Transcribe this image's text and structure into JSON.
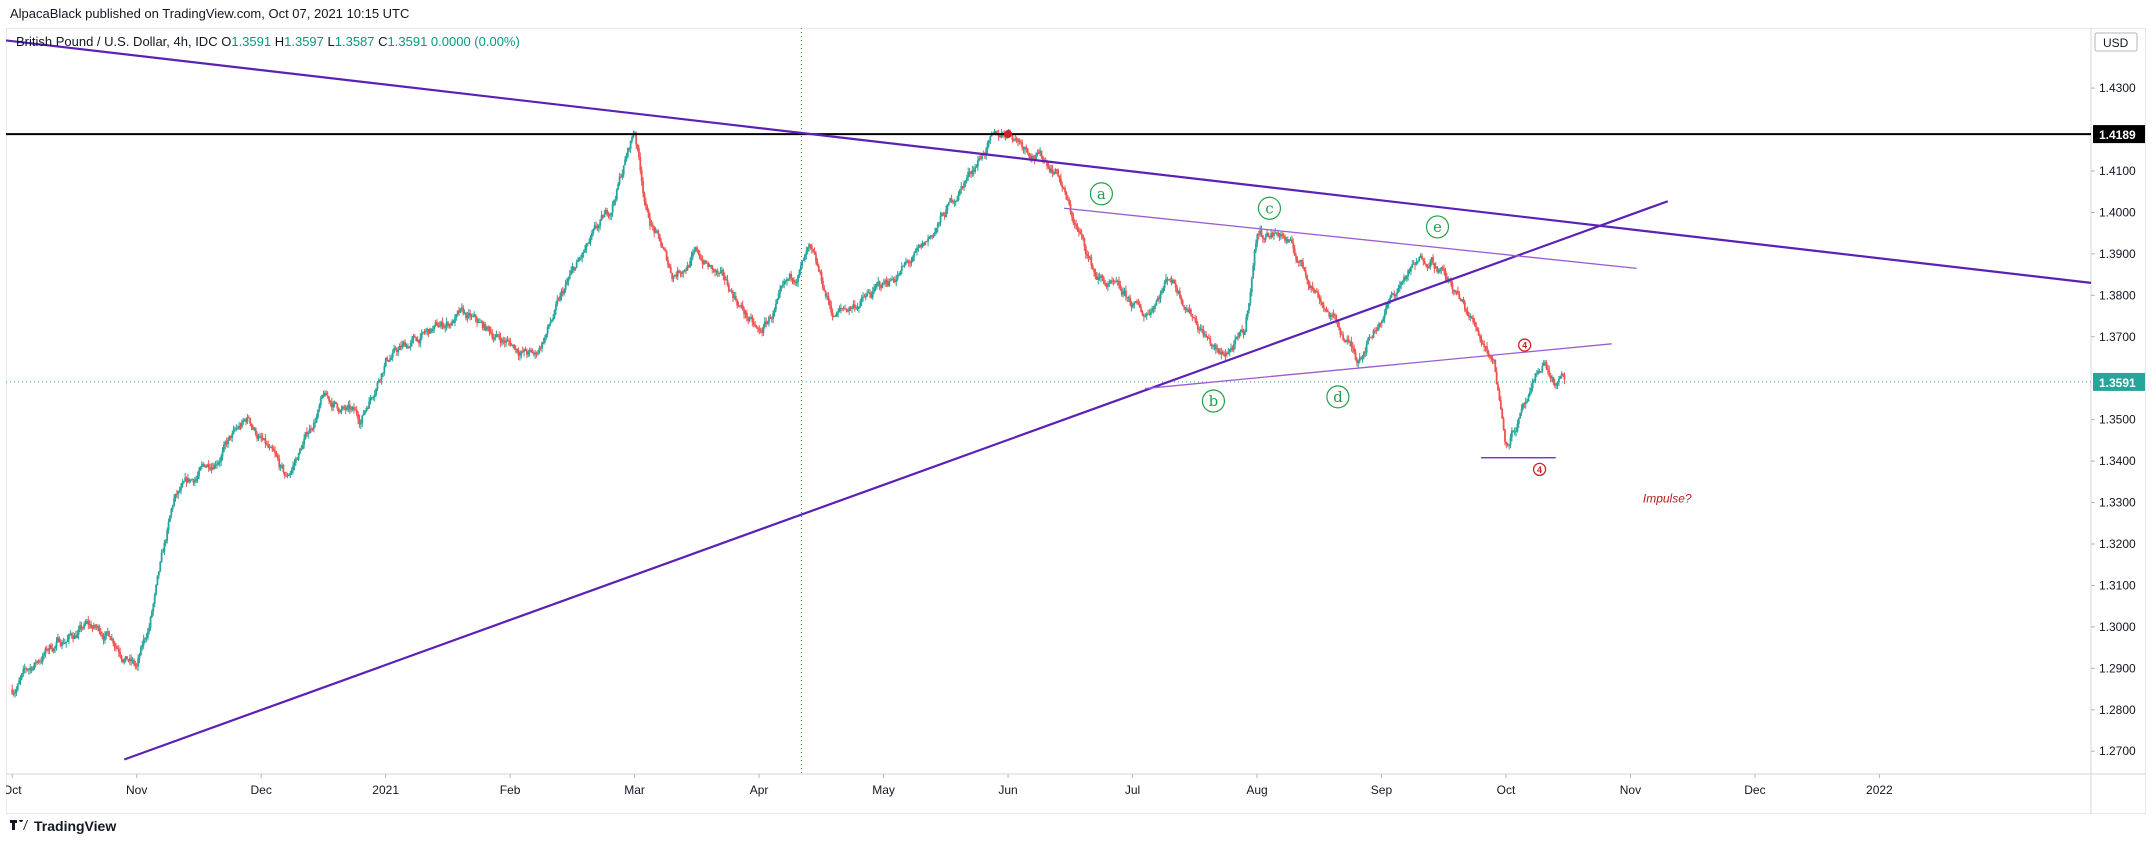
{
  "publisher": "AlpacaBlack published on TradingView.com, Oct 07, 2021 10:15 UTC",
  "legend": {
    "symbol": "British Pound / U.S. Dollar, 4h, IDC",
    "o_label": "O",
    "o": "1.3591",
    "h_label": "H",
    "h": "1.3597",
    "l_label": "L",
    "l": "1.3587",
    "c_label": "C",
    "c": "1.3591",
    "change": "0.0000 (0.00%)"
  },
  "footer": {
    "brand": "TradingView"
  },
  "colors": {
    "up": "#26a69a",
    "down": "#ef5350",
    "trendline": "#5b21b6",
    "triangle": "#9c5bd1",
    "wave": "#22a146",
    "marker": "#d11f2a",
    "level": "#000000"
  },
  "chart_data": {
    "type": "candlestick",
    "currency": "USD",
    "ylim": [
      1.2645,
      1.4445
    ],
    "y_ticks": [
      "1.4300",
      "1.4100",
      "1.4000",
      "1.3900",
      "1.3800",
      "1.3700",
      "1.3500",
      "1.3400",
      "1.3300",
      "1.3200",
      "1.3100",
      "1.3000",
      "1.2900",
      "1.2800",
      "1.2700"
    ],
    "x_ticks": [
      "Oct",
      "Nov",
      "Dec",
      "2021",
      "Feb",
      "Mar",
      "Apr",
      "May",
      "Jun",
      "Jul",
      "Aug",
      "Sep",
      "Oct",
      "Nov",
      "Dec",
      "2022"
    ],
    "x_tick_months": [
      0,
      1,
      2,
      3,
      4,
      5,
      6,
      7,
      8,
      9,
      10,
      11,
      12,
      13,
      14,
      15
    ],
    "x_range_months": [
      -0.05,
      16.7
    ],
    "last_price": "1.3591",
    "last_price_value": 1.3591,
    "horizontal_level": {
      "label": "1.4189",
      "value": 1.4189
    },
    "price_path": [
      [
        0.0,
        1.285
      ],
      [
        0.3,
        1.295
      ],
      [
        0.6,
        1.3
      ],
      [
        0.8,
        1.298
      ],
      [
        1.0,
        1.29
      ],
      [
        1.1,
        1.3
      ],
      [
        1.3,
        1.33
      ],
      [
        1.6,
        1.34
      ],
      [
        1.9,
        1.35
      ],
      [
        2.2,
        1.335
      ],
      [
        2.5,
        1.355
      ],
      [
        2.8,
        1.35
      ],
      [
        3.0,
        1.365
      ],
      [
        3.3,
        1.37
      ],
      [
        3.6,
        1.375
      ],
      [
        3.9,
        1.37
      ],
      [
        4.2,
        1.365
      ],
      [
        4.5,
        1.385
      ],
      [
        4.8,
        1.4
      ],
      [
        5.0,
        1.42
      ],
      [
        5.1,
        1.4
      ],
      [
        5.3,
        1.385
      ],
      [
        5.5,
        1.39
      ],
      [
        5.8,
        1.38
      ],
      [
        6.0,
        1.37
      ],
      [
        6.2,
        1.38
      ],
      [
        6.4,
        1.39
      ],
      [
        6.6,
        1.375
      ],
      [
        6.9,
        1.38
      ],
      [
        7.1,
        1.385
      ],
      [
        7.3,
        1.39
      ],
      [
        7.6,
        1.405
      ],
      [
        7.8,
        1.415
      ],
      [
        8.0,
        1.42
      ],
      [
        8.2,
        1.415
      ],
      [
        8.4,
        1.41
      ],
      [
        8.5,
        1.4
      ],
      [
        8.7,
        1.385
      ],
      [
        8.9,
        1.38
      ],
      [
        9.1,
        1.375
      ],
      [
        9.3,
        1.385
      ],
      [
        9.5,
        1.375
      ],
      [
        9.7,
        1.365
      ],
      [
        9.9,
        1.37
      ],
      [
        10.0,
        1.395
      ],
      [
        10.2,
        1.395
      ],
      [
        10.4,
        1.385
      ],
      [
        10.6,
        1.375
      ],
      [
        10.8,
        1.365
      ],
      [
        11.0,
        1.375
      ],
      [
        11.2,
        1.385
      ],
      [
        11.4,
        1.39
      ],
      [
        11.6,
        1.38
      ],
      [
        11.8,
        1.37
      ],
      [
        11.9,
        1.365
      ],
      [
        12.0,
        1.345
      ],
      [
        12.1,
        1.35
      ],
      [
        12.2,
        1.355
      ],
      [
        12.3,
        1.364
      ],
      [
        12.4,
        1.358
      ],
      [
        12.47,
        1.3591
      ]
    ],
    "candles_per_month": 90,
    "trendlines": [
      {
        "name": "descending-trendline",
        "from": [
          -0.05,
          1.4415
        ],
        "to": [
          16.7,
          1.383
        ]
      },
      {
        "name": "ascending-trendline",
        "from": [
          0.9,
          1.268
        ],
        "to": [
          13.3,
          1.4027
        ]
      },
      {
        "name": "triangle-upper",
        "from": [
          8.45,
          1.401
        ],
        "to": [
          13.05,
          1.3865
        ]
      },
      {
        "name": "triangle-lower",
        "from": [
          9.1,
          1.3575
        ],
        "to": [
          12.85,
          1.3683
        ]
      },
      {
        "name": "wave-low-line",
        "from": [
          11.8,
          1.3408
        ],
        "to": [
          12.4,
          1.3408
        ]
      }
    ],
    "vertical_line_month": 6.34,
    "wave_labels": [
      {
        "label": "a",
        "x": 8.75,
        "y": 1.4045
      },
      {
        "label": "b",
        "x": 9.65,
        "y": 1.3545
      },
      {
        "label": "c",
        "x": 10.1,
        "y": 1.401
      },
      {
        "label": "d",
        "x": 10.65,
        "y": 1.3555
      },
      {
        "label": "e",
        "x": 11.45,
        "y": 1.3965
      }
    ],
    "markers": [
      {
        "label": "4",
        "x": 12.15,
        "y": 1.368
      },
      {
        "label": "4",
        "x": 12.27,
        "y": 1.338
      }
    ],
    "annotation": {
      "text": "Impulse?",
      "x": 13.1,
      "y": 1.33
    }
  }
}
